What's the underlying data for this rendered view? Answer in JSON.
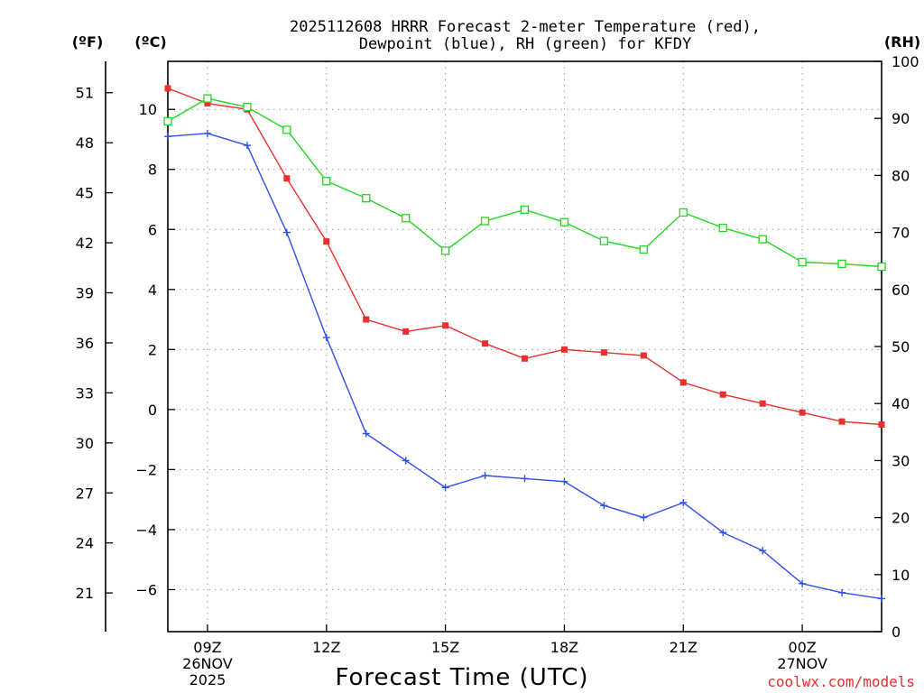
{
  "chart_data": {
    "type": "line",
    "title_line1": "2025112608 HRRR Forecast 2-meter Temperature (red),",
    "title_line2": "Dewpoint (blue), RH (green) for KFDY",
    "xlabel": "Forecast Time (UTC)",
    "unit_left_f": "(ºF)",
    "unit_left_c": "(ºC)",
    "unit_right": "(RH)",
    "credit": "coolwx.com/models",
    "x_hours": [
      8,
      9,
      10,
      11,
      12,
      13,
      14,
      15,
      16,
      17,
      18,
      19,
      20,
      21,
      22,
      23,
      24,
      25,
      26
    ],
    "x_range": [
      8,
      26
    ],
    "x_ticks": [
      {
        "hour": 9,
        "lines": [
          "09Z",
          "26NOV",
          "2025"
        ]
      },
      {
        "hour": 12,
        "lines": [
          "12Z"
        ]
      },
      {
        "hour": 15,
        "lines": [
          "15Z"
        ]
      },
      {
        "hour": 18,
        "lines": [
          "18Z"
        ]
      },
      {
        "hour": 21,
        "lines": [
          "21Z"
        ]
      },
      {
        "hour": 24,
        "lines": [
          "00Z",
          "27NOV"
        ]
      }
    ],
    "c_range": [
      -7.4,
      11.6
    ],
    "c_ticks": [
      -6,
      -4,
      -2,
      0,
      2,
      4,
      6,
      8,
      10
    ],
    "c_tick_labels": [
      "−6",
      "−4",
      "−2",
      "0",
      "2",
      "4",
      "6",
      "8",
      "10"
    ],
    "f_ticks": [
      21,
      24,
      27,
      30,
      33,
      36,
      39,
      42,
      45,
      48,
      51
    ],
    "rh_range": [
      0,
      100
    ],
    "rh_ticks": [
      0,
      10,
      20,
      30,
      40,
      50,
      60,
      70,
      80,
      90,
      100
    ],
    "grid": true,
    "series": [
      {
        "name": "Temperature",
        "axis": "celsius",
        "color": "#e8302e",
        "marker": "filled-square",
        "values": [
          10.7,
          10.2,
          10.0,
          7.7,
          5.6,
          3.0,
          2.6,
          2.8,
          2.2,
          1.7,
          2.0,
          1.9,
          1.8,
          0.9,
          0.5,
          0.2,
          -0.1,
          -0.4,
          -0.5
        ]
      },
      {
        "name": "Dewpoint",
        "axis": "celsius",
        "color": "#2f4ef0",
        "marker": "plus",
        "values": [
          9.1,
          9.2,
          8.8,
          5.9,
          2.4,
          -0.8,
          -1.7,
          -2.6,
          -2.2,
          -2.3,
          -2.4,
          -3.2,
          -3.6,
          -3.1,
          -4.1,
          -4.7,
          -5.8,
          -6.1,
          -6.3
        ]
      },
      {
        "name": "RH",
        "axis": "rh",
        "color": "#22d822",
        "marker": "open-square",
        "values": [
          89.5,
          93.5,
          92.0,
          88.0,
          79.0,
          76.0,
          72.5,
          66.8,
          72.0,
          74.0,
          71.8,
          68.5,
          67.0,
          73.5,
          70.8,
          68.8,
          64.8,
          64.5,
          64.0
        ]
      }
    ]
  }
}
